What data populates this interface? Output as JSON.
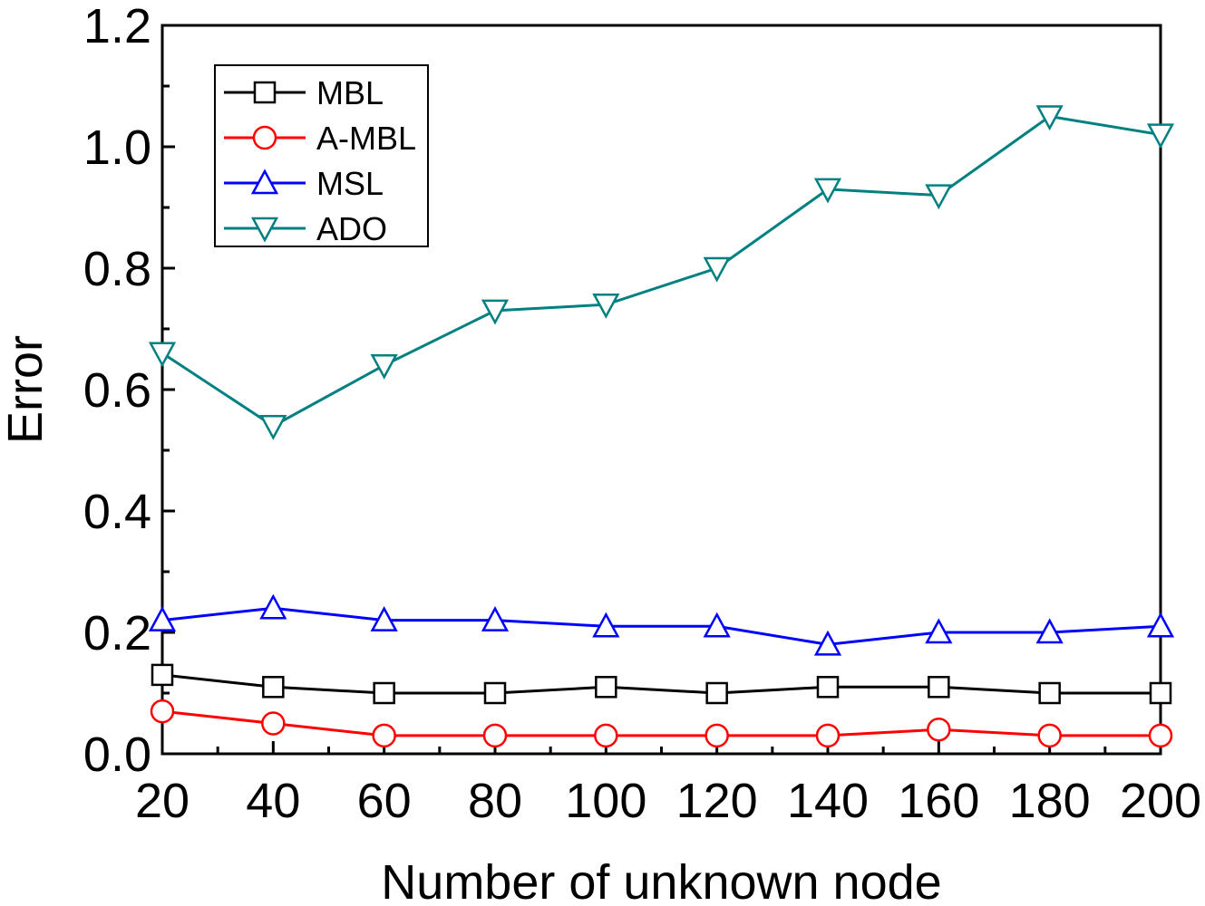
{
  "chart_data": {
    "type": "line",
    "title": "",
    "xlabel": "Number of unknown node",
    "ylabel": "Error",
    "x": [
      20,
      40,
      60,
      80,
      100,
      120,
      140,
      160,
      180,
      200
    ],
    "xlim": [
      20,
      200
    ],
    "ylim": [
      0.0,
      1.2
    ],
    "x_ticks": [
      "20",
      "40",
      "60",
      "80",
      "100",
      "120",
      "140",
      "160",
      "180",
      "200"
    ],
    "y_ticks": [
      "0.0",
      "0.2",
      "0.4",
      "0.6",
      "0.8",
      "1.0",
      "1.2"
    ],
    "grid": false,
    "legend_position": "top-left",
    "series": [
      {
        "name": "MBL",
        "color": "#000000",
        "marker": "square",
        "values": [
          0.13,
          0.11,
          0.1,
          0.1,
          0.11,
          0.1,
          0.11,
          0.11,
          0.1,
          0.1
        ]
      },
      {
        "name": "A-MBL",
        "color": "#ff0000",
        "marker": "circle",
        "values": [
          0.07,
          0.05,
          0.03,
          0.03,
          0.03,
          0.03,
          0.03,
          0.04,
          0.03,
          0.03
        ]
      },
      {
        "name": "MSL",
        "color": "#0000ff",
        "marker": "triangle-up",
        "values": [
          0.22,
          0.24,
          0.22,
          0.22,
          0.21,
          0.21,
          0.18,
          0.2,
          0.2,
          0.21
        ]
      },
      {
        "name": "ADO",
        "color": "#008080",
        "marker": "triangle-down",
        "values": [
          0.66,
          0.54,
          0.64,
          0.73,
          0.74,
          0.8,
          0.93,
          0.92,
          1.05,
          1.02
        ]
      }
    ]
  }
}
